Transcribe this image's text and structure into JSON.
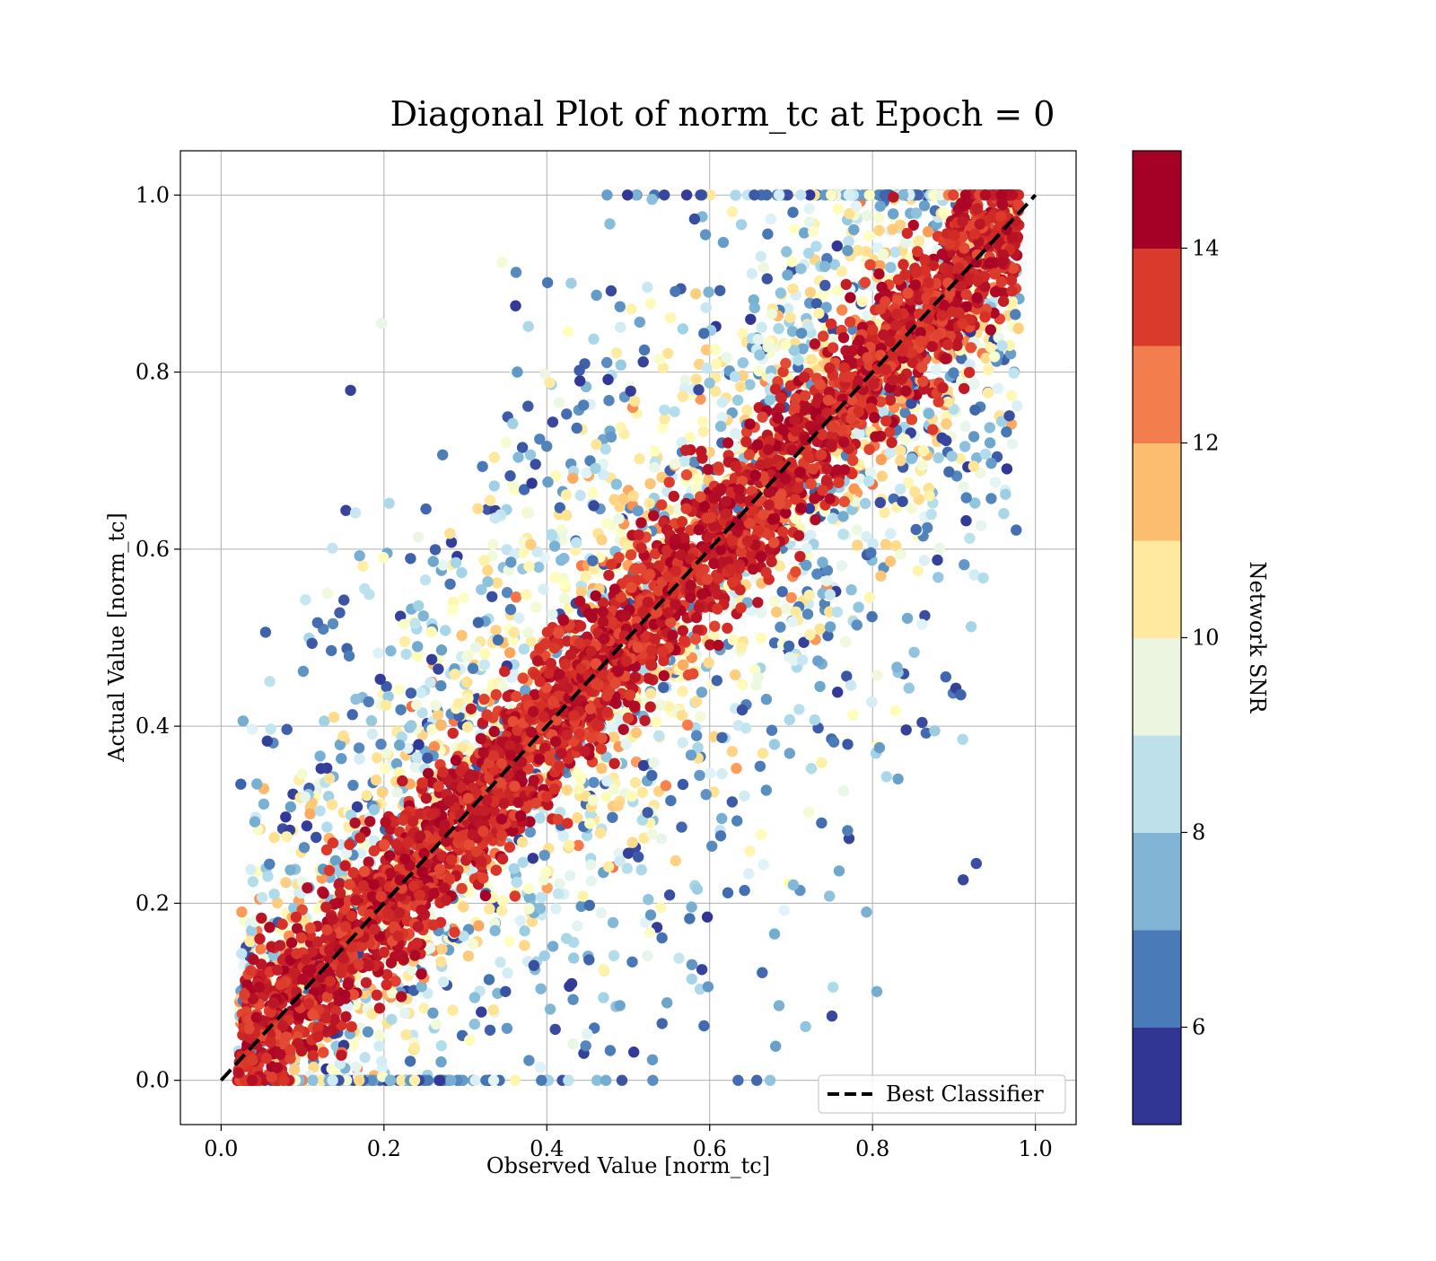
{
  "chart_data": {
    "type": "scatter",
    "title": "Diagonal Plot of norm_tc at Epoch = 0",
    "xlabel": "Observed Value [norm_tc]",
    "ylabel": "Actual Value [norm_tc]",
    "xlim": [
      -0.05,
      1.05
    ],
    "ylim": [
      -0.05,
      1.05
    ],
    "x_ticks": [
      0.0,
      0.2,
      0.4,
      0.6,
      0.8,
      1.0
    ],
    "y_ticks": [
      0.0,
      0.2,
      0.4,
      0.6,
      0.8,
      1.0
    ],
    "x_tick_labels": [
      "0.0",
      "0.2",
      "0.4",
      "0.6",
      "0.8",
      "1.0"
    ],
    "y_tick_labels": [
      "0.0",
      "0.2",
      "0.4",
      "0.6",
      "0.8",
      "1.0"
    ],
    "grid": true,
    "colorbar": {
      "label": "Network SNR",
      "range": [
        5,
        15
      ],
      "ticks": [
        6,
        8,
        10,
        12,
        14
      ],
      "tick_labels": [
        "6",
        "8",
        "10",
        "12",
        "14"
      ],
      "colors": [
        "#313695",
        "#4575b4",
        "#74add1",
        "#abd9e9",
        "#e0f3f8",
        "#ffffbf",
        "#fee090",
        "#fdae61",
        "#f46d43",
        "#d73027",
        "#a50026"
      ],
      "band_colors": [
        "#313695",
        "#4a7ab7",
        "#82b4d6",
        "#bde0ea",
        "#ebf5e0",
        "#fee99f",
        "#fdbd6f",
        "#f47d4d",
        "#d93a2c",
        "#a50026"
      ]
    },
    "legend": {
      "position": "lower-right",
      "entries": [
        {
          "label": "Best Classifier",
          "style": "dashed",
          "color": "#000000"
        }
      ]
    },
    "reference_line": {
      "name": "Best Classifier",
      "x": [
        0.0,
        1.0
      ],
      "y": [
        0.0,
        1.0
      ]
    },
    "series": [
      {
        "marker": "circle",
        "description_of_distribution": "dense red band (high SNR) along y = x; low-SNR points scattered widely above and below the diagonal",
        "x_range": [
          0.02,
          0.98
        ],
        "y_range": [
          0.0,
          1.0
        ]
      }
    ]
  }
}
